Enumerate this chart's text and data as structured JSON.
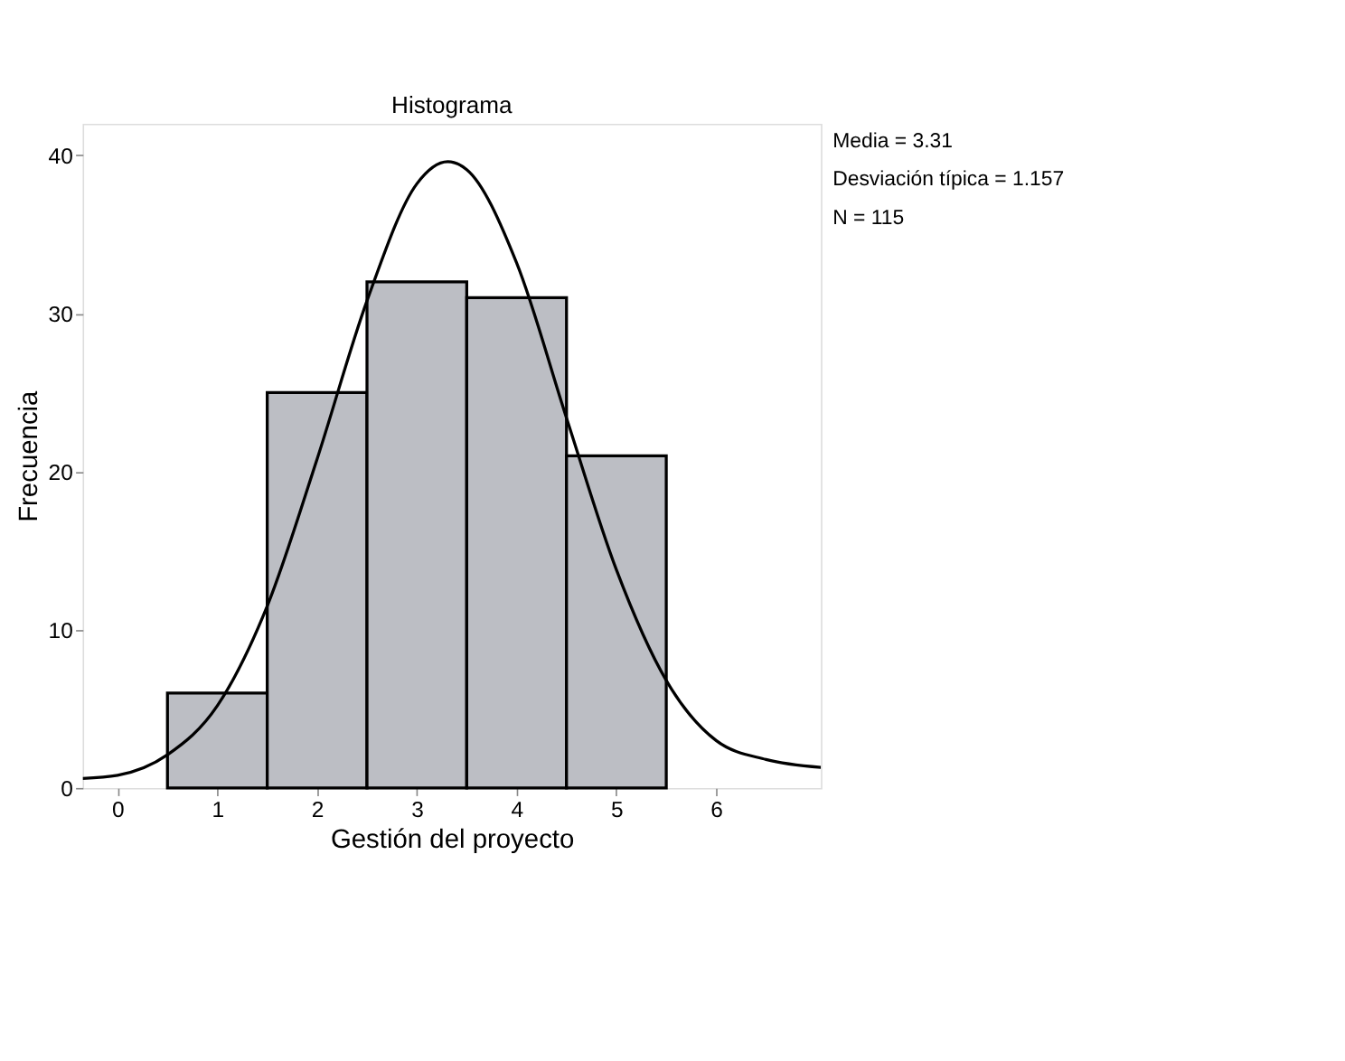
{
  "chart_data": {
    "type": "histogram",
    "title": "Histograma",
    "xlabel": "Gestión del proyecto",
    "ylabel": "Frecuencia",
    "bins": [
      0.5,
      1.5,
      2.5,
      3.5,
      4.5,
      5.5
    ],
    "values": [
      6,
      25,
      32,
      31,
      21
    ],
    "color": "#bcbec4",
    "series": [
      {
        "type": "line",
        "color": "#000000",
        "x": [
          -0.35,
          0,
          0.5,
          1,
          1.5,
          2,
          2.5,
          3,
          3.31,
          3.5,
          4,
          4.5,
          5,
          5.5,
          6,
          6.5,
          7.05
        ],
        "values": [
          0.6,
          0.8,
          2.1,
          5.2,
          11.5,
          20.8,
          30.8,
          38.2,
          39.6,
          39.1,
          33.2,
          23.4,
          13.8,
          6.8,
          3.0,
          1.8,
          1.3
        ]
      }
    ],
    "xlim": [
      -0.35,
      7.05
    ],
    "xticks": [
      0,
      1,
      2,
      3,
      4,
      5,
      6
    ],
    "ylim": [
      0,
      42
    ],
    "yticks": [
      0,
      10,
      20,
      30,
      40
    ],
    "grid": false,
    "annotations": [
      "Media = 3.31",
      "Desviación típica = 1.157",
      "N = 115"
    ]
  }
}
